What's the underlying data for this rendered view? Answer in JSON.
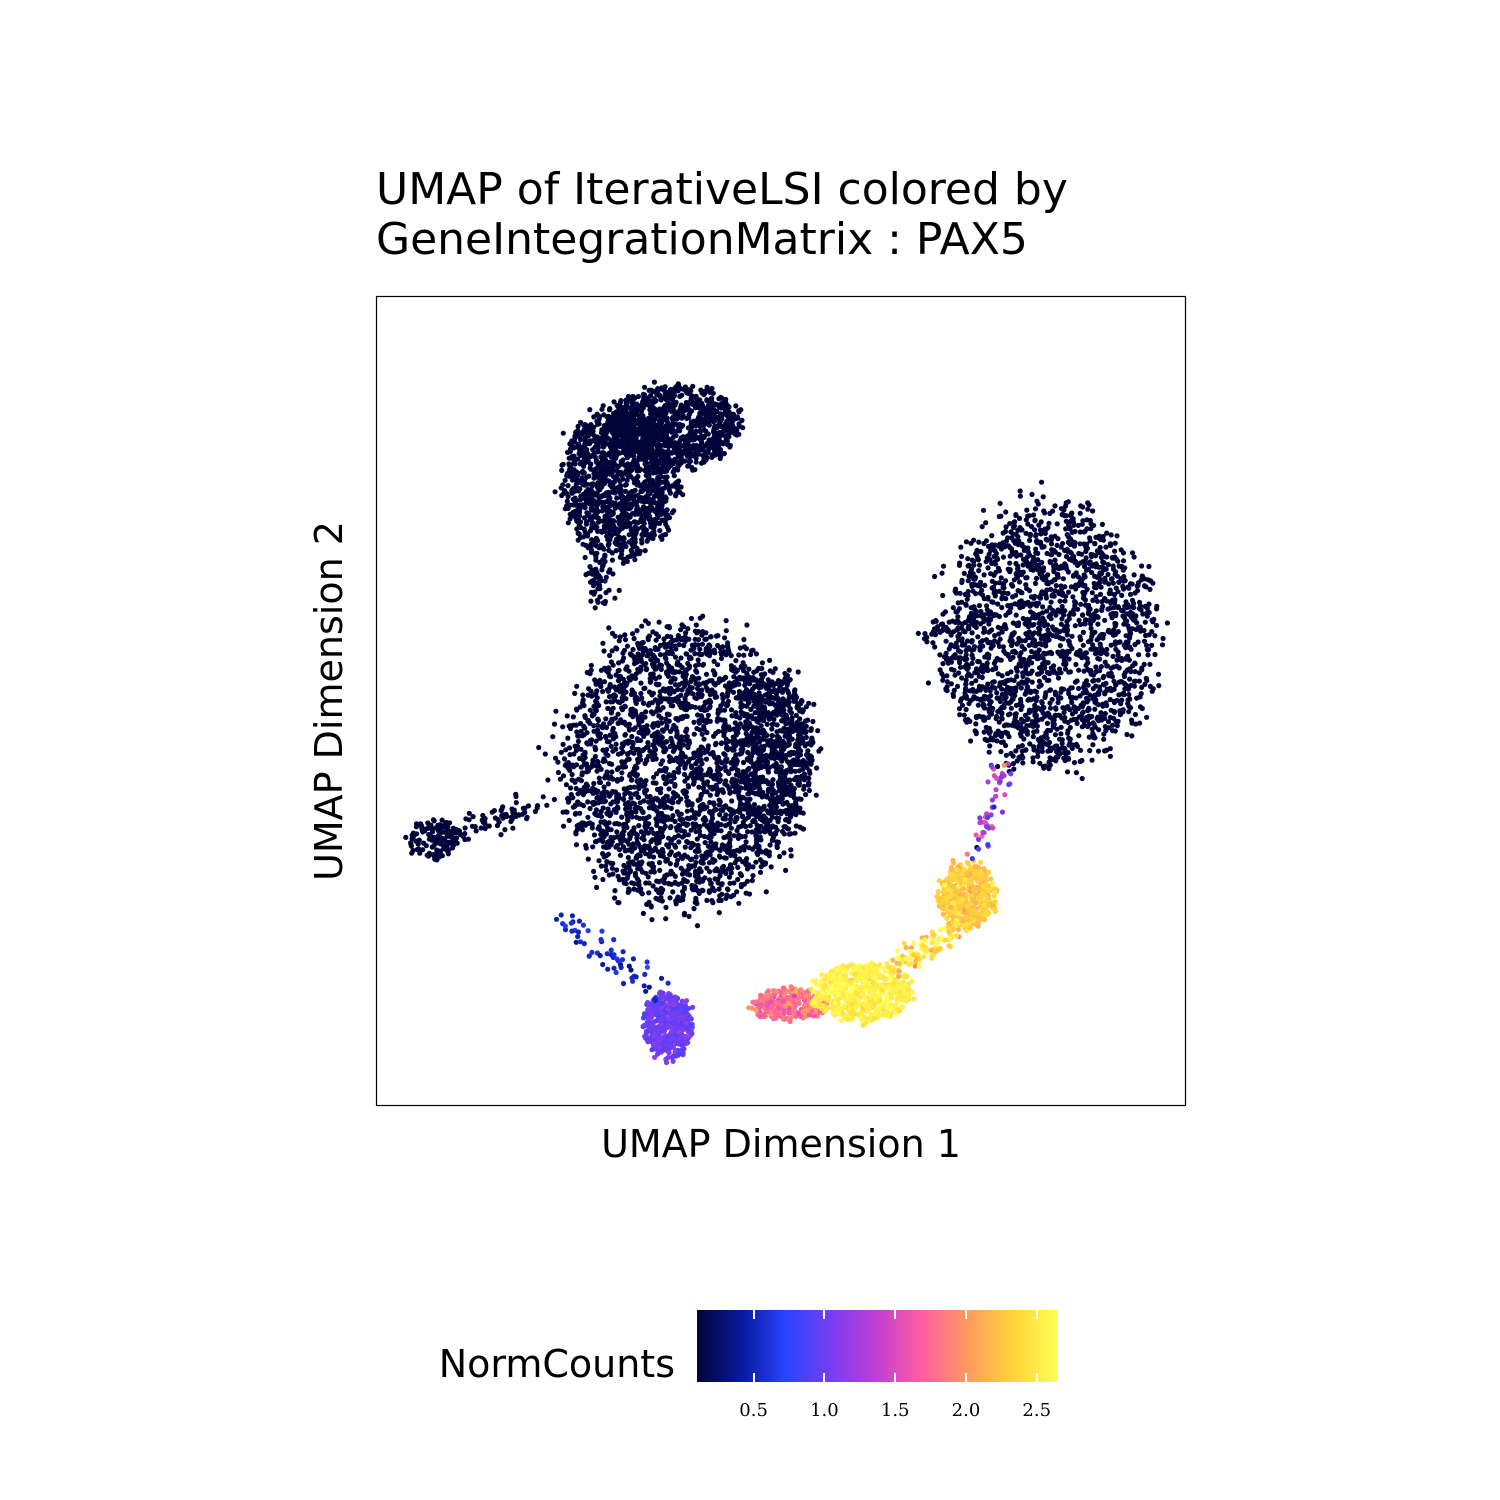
{
  "chart_data": {
    "type": "scatter",
    "title": [
      "UMAP of IterativeLSI colored by",
      "GeneIntegrationMatrix : PAX5"
    ],
    "xlabel": "UMAP Dimension 1",
    "ylabel": "UMAP Dimension 2",
    "legend": {
      "title": "NormCounts",
      "placement": "bottom",
      "range": [
        0.1,
        2.65
      ],
      "ticks": [
        0.5,
        1.0,
        1.5,
        2.0,
        2.5
      ],
      "tick_labels": [
        "0.5",
        "1.0",
        "1.5",
        "2.0",
        "2.5"
      ]
    },
    "colorscale": [
      "#000436",
      "#0a1a9e",
      "#2b44ff",
      "#7a3df0",
      "#c23ed0",
      "#ff5fa0",
      "#ff9b5e",
      "#ffd23a",
      "#ffff55"
    ],
    "grid": false,
    "axis_ticks": false,
    "clusters": [
      {
        "cx": 0.3,
        "cy": 0.77,
        "rx": 0.07,
        "ry": 0.09,
        "n": 1300,
        "value": 0.1,
        "spread": 0.02
      },
      {
        "cx": 0.37,
        "cy": 0.84,
        "rx": 0.08,
        "ry": 0.05,
        "n": 900,
        "value": 0.1,
        "spread": 0.02
      },
      {
        "cx": 0.38,
        "cy": 0.42,
        "rx": 0.15,
        "ry": 0.17,
        "n": 2600,
        "value": 0.1,
        "spread": 0.02
      },
      {
        "cx": 0.49,
        "cy": 0.44,
        "rx": 0.05,
        "ry": 0.1,
        "n": 500,
        "value": 0.1,
        "spread": 0.02
      },
      {
        "cx": 0.07,
        "cy": 0.33,
        "rx": 0.03,
        "ry": 0.025,
        "n": 120,
        "value": 0.1,
        "spread": 0.02
      },
      {
        "cx": 0.83,
        "cy": 0.58,
        "rx": 0.13,
        "ry": 0.16,
        "n": 2000,
        "value": 0.1,
        "spread": 0.02
      },
      {
        "cx": 0.36,
        "cy": 0.1,
        "rx": 0.03,
        "ry": 0.04,
        "n": 450,
        "value": 1.0,
        "spread": 0.08
      },
      {
        "cx": 0.51,
        "cy": 0.125,
        "rx": 0.045,
        "ry": 0.02,
        "n": 260,
        "value": 1.8,
        "spread": 0.15
      },
      {
        "cx": 0.6,
        "cy": 0.14,
        "rx": 0.06,
        "ry": 0.035,
        "n": 600,
        "value": 2.55,
        "spread": 0.08
      },
      {
        "cx": 0.73,
        "cy": 0.26,
        "rx": 0.035,
        "ry": 0.04,
        "n": 450,
        "value": 2.3,
        "spread": 0.1
      }
    ],
    "paths": [
      {
        "from": [
          0.23,
          0.23
        ],
        "to": [
          0.35,
          0.14
        ],
        "n": 60,
        "value": 0.5,
        "spread": 0.1
      },
      {
        "from": [
          0.64,
          0.17
        ],
        "to": [
          0.72,
          0.22
        ],
        "n": 100,
        "value": 2.4,
        "spread": 0.2
      },
      {
        "from": [
          0.74,
          0.31
        ],
        "to": [
          0.77,
          0.42
        ],
        "n": 50,
        "value": 1.2,
        "spread": 0.4
      },
      {
        "from": [
          0.28,
          0.62
        ],
        "to": [
          0.27,
          0.68
        ],
        "n": 60,
        "value": 0.1,
        "spread": 0.02
      },
      {
        "from": [
          0.07,
          0.33
        ],
        "to": [
          0.2,
          0.37
        ],
        "n": 90,
        "value": 0.1,
        "spread": 0.02
      },
      {
        "from": [
          0.67,
          0.58
        ],
        "to": [
          0.72,
          0.6
        ],
        "n": 25,
        "value": 0.1,
        "spread": 0.02
      }
    ]
  }
}
